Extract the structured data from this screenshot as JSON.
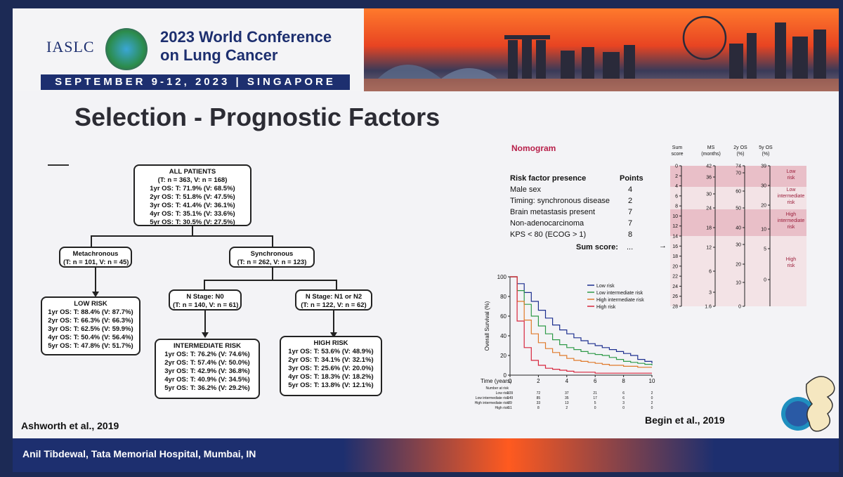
{
  "conference": {
    "org": "IASLC",
    "title_line1": "2023 World Conference",
    "title_line2": "on Lung Cancer",
    "date_bar": "SEPTEMBER 9-12, 2023 | SINGAPORE"
  },
  "slide_title": "Selection - Prognostic Factors",
  "flowchart": {
    "all": {
      "title": "ALL PATIENTS",
      "n": "(T: n = 363, V: n = 168)",
      "rows": [
        "1yr OS: T: 71.9% (V: 68.5%)",
        "2yr OS: T: 51.8% (V: 47.5%)",
        "3yr OS: T: 41.4% (V: 36.1%)",
        "4yr OS: T: 35.1% (V: 33.6%)",
        "5yr OS: T: 30.5% (V: 27.5%)"
      ]
    },
    "meta": {
      "title": "Metachronous",
      "n": "(T: n = 101, V: n = 45)"
    },
    "sync": {
      "title": "Synchronous",
      "n": "(T: n = 262, V: n = 123)"
    },
    "n0": {
      "title": "N Stage: N0",
      "n": "(T: n = 140, V: n = 61)"
    },
    "n12": {
      "title": "N Stage: N1 or N2",
      "n": "(T: n = 122, V: n = 62)"
    },
    "low": {
      "title": "LOW RISK",
      "rows": [
        "1yr OS: T: 88.4% (V: 87.7%)",
        "2yr OS: T: 66.3% (V: 66.3%)",
        "3yr OS: T: 62.5% (V: 59.9%)",
        "4yr OS: T: 50.4% (V: 56.4%)",
        "5yr OS: T: 47.8% (V: 51.7%)"
      ]
    },
    "inter": {
      "title": "INTERMEDIATE RISK",
      "rows": [
        "1yr OS: T: 76.2% (V: 74.6%)",
        "2yr OS: T: 57.4% (V: 50.0%)",
        "3yr OS: T: 42.9% (V: 36.8%)",
        "4yr OS: T: 40.9% (V: 34.5%)",
        "5yr OS: T: 36.2% (V: 29.2%)"
      ]
    },
    "high": {
      "title": "HIGH RISK",
      "rows": [
        "1yr OS: T: 53.6% (V: 48.9%)",
        "2yr OS: T: 34.1% (V: 32.1%)",
        "3yr OS: T: 25.6% (V: 20.0%)",
        "4yr OS: T: 18.3% (V: 18.2%)",
        "5yr OS: T: 13.8% (V: 12.1%)"
      ]
    }
  },
  "cite_left": "Ashworth et al., 2019",
  "cite_right": "Begin et al., 2019",
  "nomogram": {
    "title": "Nomogram",
    "header_factor": "Risk factor presence",
    "header_points": "Points",
    "factors": [
      {
        "label": "Male sex",
        "points": "4"
      },
      {
        "label": "Timing: synchronous disease",
        "points": "2"
      },
      {
        "label": "Brain metastasis present",
        "points": "7"
      },
      {
        "label": "Non-adenocarcinoma",
        "points": "7"
      },
      {
        "label": "KPS < 80 (ECOG > 1)",
        "points": "8"
      }
    ],
    "sum_label": "Sum score:",
    "sum_value": "...",
    "scale_headers": [
      "Sum score",
      "MS (months)",
      "2y OS (%)",
      "5y OS (%)"
    ],
    "sum_ticks": [
      "0",
      "2",
      "4",
      "6",
      "8",
      "10",
      "12",
      "14",
      "16",
      "18",
      "20",
      "22",
      "24",
      "26",
      "28"
    ],
    "ms_ticks": [
      "42",
      "36",
      "30",
      "24",
      "18",
      "12",
      "6",
      "3",
      "1.6"
    ],
    "os2_ticks": [
      "74",
      "70",
      "60",
      "50",
      "40",
      "30",
      "20",
      "10",
      "0"
    ],
    "os5_ticks": [
      "39",
      "30",
      "20",
      "10",
      "5",
      "0"
    ],
    "risk_labels": [
      "Low risk",
      "Low intermediate risk",
      "High intermediate risk",
      "High risk"
    ],
    "band_colors": [
      "#e9bfc8",
      "#f3e3e6",
      "#e9bfc8",
      "#f3e3e6"
    ]
  },
  "chart_data": {
    "type": "line",
    "title": "",
    "xlabel": "Time (years)",
    "ylabel": "Overall Survival (%)",
    "xlim": [
      0,
      10
    ],
    "ylim": [
      0,
      100
    ],
    "x_ticks": [
      "0",
      "2",
      "4",
      "6",
      "8",
      "10"
    ],
    "y_ticks": [
      "0",
      "20",
      "40",
      "60",
      "80",
      "100"
    ],
    "legend_position": "top-right",
    "series": [
      {
        "name": "Low risk",
        "color": "#1d2f8f",
        "x": [
          0,
          0.5,
          1,
          1.5,
          2,
          2.5,
          3,
          3.5,
          4,
          4.5,
          5,
          5.5,
          6,
          6.5,
          7,
          7.5,
          8,
          8.5,
          9,
          9.5,
          10
        ],
        "y": [
          100,
          93,
          84,
          75,
          66,
          58,
          51,
          46,
          42,
          38,
          35,
          32,
          30,
          28,
          26,
          24,
          22,
          20,
          16,
          14,
          12
        ]
      },
      {
        "name": "Low intermediate risk",
        "color": "#2e9a48",
        "x": [
          0,
          0.5,
          1,
          1.5,
          2,
          2.5,
          3,
          3.5,
          4,
          4.5,
          5,
          5.5,
          6,
          6.5,
          7,
          7.5,
          8,
          8.5,
          9,
          9.5,
          10
        ],
        "y": [
          100,
          86,
          72,
          60,
          50,
          42,
          36,
          31,
          28,
          26,
          24,
          22,
          21,
          20,
          18,
          16,
          14,
          13,
          12,
          11,
          10
        ]
      },
      {
        "name": "High intermediate risk",
        "color": "#e07a2a",
        "x": [
          0,
          0.5,
          1,
          1.5,
          2,
          2.5,
          3,
          3.5,
          4,
          4.5,
          5,
          5.5,
          6,
          6.5,
          7,
          7.5,
          8,
          8.5,
          9,
          9.5,
          10
        ],
        "y": [
          100,
          75,
          56,
          42,
          33,
          27,
          23,
          20,
          17,
          15,
          14,
          13,
          12,
          11,
          10,
          10,
          9,
          9,
          8,
          8,
          8
        ]
      },
      {
        "name": "High risk",
        "color": "#d7263d",
        "x": [
          0,
          0.5,
          1,
          1.5,
          2,
          2.5,
          3,
          3.5,
          4,
          4.5,
          5,
          6,
          7,
          8,
          9,
          10
        ],
        "y": [
          100,
          55,
          28,
          15,
          10,
          7,
          6,
          5,
          4,
          3,
          3,
          2,
          2,
          2,
          2,
          2
        ]
      }
    ],
    "risk_table": {
      "header": "Number at risk",
      "times": [
        "0",
        "2",
        "4",
        "6",
        "8",
        "10"
      ],
      "rows": [
        {
          "label": "Low risk",
          "values": [
            "109",
            "72",
            "37",
            "21",
            "6",
            "2"
          ]
        },
        {
          "label": "Low intermediate risk",
          "values": [
            "149",
            "85",
            "35",
            "17",
            "6",
            "0"
          ]
        },
        {
          "label": "High intermediate risk",
          "values": [
            "89",
            "33",
            "13",
            "5",
            "3",
            "2"
          ]
        },
        {
          "label": "High risk",
          "values": [
            "51",
            "8",
            "2",
            "0",
            "0",
            "0"
          ]
        }
      ]
    }
  },
  "footer": "Anil Tibdewal, Tata Memorial Hospital, Mumbai, IN"
}
